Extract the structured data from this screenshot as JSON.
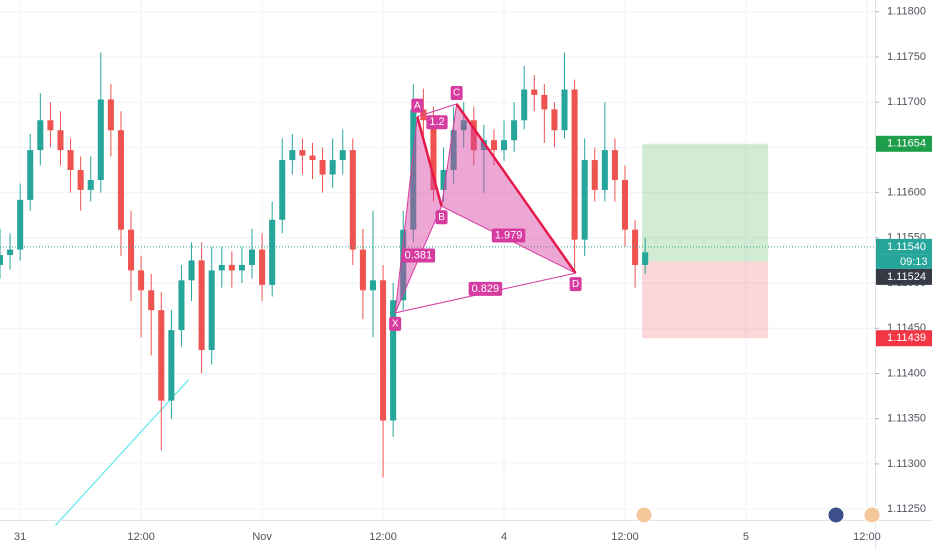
{
  "chart_data": {
    "type": "candlestick",
    "up_color": "#26a69a",
    "down_color": "#ef5350",
    "x": [
      -2,
      -1,
      0,
      1,
      2,
      3,
      4,
      5,
      6,
      7,
      8,
      9,
      10,
      11,
      12,
      13,
      14,
      15,
      16,
      17,
      18,
      19,
      20,
      21,
      22,
      23,
      24,
      25,
      26,
      27,
      28,
      29,
      30,
      31,
      32,
      33,
      34,
      35,
      36,
      37,
      38,
      39,
      40,
      41,
      42,
      43,
      44,
      45,
      46,
      47,
      48,
      49,
      50,
      51,
      52,
      53,
      54,
      55,
      56,
      57,
      58,
      59,
      60,
      61,
      62
    ],
    "open": [
      1.1152,
      1.11531,
      1.11537,
      1.11592,
      1.11647,
      1.1168,
      1.11669,
      1.11647,
      1.11625,
      1.11603,
      1.11614,
      1.11703,
      1.11669,
      1.11559,
      1.11514,
      1.11492,
      1.1147,
      1.1137,
      1.11448,
      1.11503,
      1.11525,
      1.11426,
      1.11514,
      1.1152,
      1.11514,
      1.1152,
      1.11537,
      1.11498,
      1.1157,
      1.11636,
      1.11647,
      1.11641,
      1.11636,
      1.1162,
      1.11636,
      1.11647,
      1.11537,
      1.11492,
      1.11503,
      1.11348,
      1.11481,
      1.11559,
      1.11692,
      1.1168,
      1.11603,
      1.11625,
      1.11669,
      1.1168,
      1.11647,
      1.11658,
      1.11647,
      1.11658,
      1.1168,
      1.11714,
      1.11708,
      1.11692,
      1.11669,
      1.11714,
      1.11548,
      1.11636,
      1.11603,
      1.11647,
      1.11614,
      1.11559,
      1.1152
    ],
    "high": [
      1.1156,
      1.11555,
      1.1161,
      1.11665,
      1.1171,
      1.117,
      1.1169,
      1.1166,
      1.1164,
      1.1164,
      1.11755,
      1.1172,
      1.1169,
      1.1158,
      1.1153,
      1.1151,
      1.1149,
      1.1147,
      1.1152,
      1.11545,
      1.11545,
      1.1154,
      1.1154,
      1.11535,
      1.1154,
      1.1156,
      1.11555,
      1.1159,
      1.1166,
      1.11665,
      1.1166,
      1.11655,
      1.1165,
      1.1166,
      1.1167,
      1.1166,
      1.1156,
      1.1158,
      1.1152,
      1.115,
      1.1158,
      1.1172,
      1.11715,
      1.11695,
      1.1165,
      1.11695,
      1.117,
      1.11695,
      1.11675,
      1.1167,
      1.1168,
      1.117,
      1.1174,
      1.1173,
      1.1172,
      1.117,
      1.11755,
      1.11725,
      1.1166,
      1.1165,
      1.117,
      1.1166,
      1.1163,
      1.1157,
      1.1155
    ],
    "low": [
      1.11505,
      1.11515,
      1.11525,
      1.1158,
      1.1163,
      1.1165,
      1.1163,
      1.116,
      1.1158,
      1.1159,
      1.116,
      1.1164,
      1.1153,
      1.1148,
      1.1144,
      1.1142,
      1.11315,
      1.1135,
      1.1143,
      1.1148,
      1.114,
      1.1141,
      1.11495,
      1.11495,
      1.115,
      1.11505,
      1.1148,
      1.11485,
      1.11555,
      1.1162,
      1.1162,
      1.11615,
      1.116,
      1.11605,
      1.1162,
      1.1152,
      1.1146,
      1.1144,
      1.11285,
      1.1133,
      1.1147,
      1.11545,
      1.1166,
      1.1159,
      1.1159,
      1.1161,
      1.1165,
      1.1163,
      1.116,
      1.1163,
      1.11635,
      1.11645,
      1.1167,
      1.1169,
      1.11655,
      1.1165,
      1.1166,
      1.11515,
      1.1153,
      1.1159,
      1.1159,
      1.1159,
      1.1154,
      1.11495,
      1.1151
    ],
    "close": [
      1.11531,
      1.11537,
      1.11592,
      1.11647,
      1.1168,
      1.11669,
      1.11647,
      1.11625,
      1.11603,
      1.11614,
      1.11703,
      1.11669,
      1.11559,
      1.11514,
      1.11492,
      1.1147,
      1.1137,
      1.11448,
      1.11503,
      1.11525,
      1.11426,
      1.11514,
      1.1152,
      1.11514,
      1.1152,
      1.11537,
      1.11498,
      1.1157,
      1.11636,
      1.11647,
      1.11641,
      1.11636,
      1.1162,
      1.11636,
      1.11647,
      1.11537,
      1.11492,
      1.11503,
      1.11348,
      1.11481,
      1.11559,
      1.11692,
      1.1168,
      1.11603,
      1.11625,
      1.11669,
      1.1168,
      1.11647,
      1.11658,
      1.11647,
      1.11658,
      1.1168,
      1.11714,
      1.11708,
      1.11692,
      1.11669,
      1.11714,
      1.11548,
      1.11636,
      1.11603,
      1.11647,
      1.11614,
      1.11559,
      1.1152,
      1.11534
    ],
    "xlim": [
      -2,
      84.8
    ],
    "ylim": [
      1.11238,
      1.11813
    ],
    "xticks": [
      {
        "value": 0,
        "label": "31"
      },
      {
        "value": 12,
        "label": "12:00"
      },
      {
        "value": 24,
        "label": "Nov"
      },
      {
        "value": 36,
        "label": "12:00"
      },
      {
        "value": 48,
        "label": "4"
      },
      {
        "value": 60,
        "label": "12:00"
      },
      {
        "value": 72,
        "label": "5"
      },
      {
        "value": 84,
        "label": "12:00"
      }
    ],
    "yticks": [
      {
        "value": 1.1125,
        "label": "1.11250"
      },
      {
        "value": 1.113,
        "label": "1.11300"
      },
      {
        "value": 1.1135,
        "label": "1.11350"
      },
      {
        "value": 1.114,
        "label": "1.11400"
      },
      {
        "value": 1.1145,
        "label": "1.11450"
      },
      {
        "value": 1.115,
        "label": "1.11500"
      },
      {
        "value": 1.1155,
        "label": "1.11550"
      },
      {
        "value": 1.116,
        "label": "1.11600"
      },
      {
        "value": 1.1165,
        "label": "1.11650"
      },
      {
        "value": 1.117,
        "label": "1.11700"
      },
      {
        "value": 1.1175,
        "label": "1.11750"
      },
      {
        "value": 1.118,
        "label": "1.11800"
      }
    ],
    "grid": true,
    "pattern": {
      "color": "#d63ba0",
      "points": [
        {
          "label": "X",
          "x": 37.2,
          "y": 1.11467
        },
        {
          "label": "A",
          "x": 39.4,
          "y": 1.11684
        },
        {
          "label": "B",
          "x": 41.8,
          "y": 1.11585
        },
        {
          "label": "C",
          "x": 43.3,
          "y": 1.11698
        },
        {
          "label": "D",
          "x": 55.1,
          "y": 1.11511
        }
      ],
      "ratios": [
        0.381,
        1.2,
        1.979,
        0.829
      ]
    },
    "trendline": {
      "color": "#5ee8e8",
      "x": [
        3.5,
        16.7
      ],
      "y": [
        1.11232,
        1.11393
      ]
    },
    "current_price": {
      "value": 1.1154,
      "label": "1.11540",
      "countdown": "09:13",
      "color": "#26a69a"
    },
    "position": {
      "x": [
        61.7,
        74.2
      ],
      "target": {
        "value": 1.11654,
        "label": "1.11654",
        "color": "#1e9e4a"
      },
      "entry": {
        "value": 1.11524,
        "label": "1.11524",
        "color": "#363a45"
      },
      "stop": {
        "value": 1.11439,
        "label": "1.11439",
        "color": "#f23645"
      }
    }
  }
}
